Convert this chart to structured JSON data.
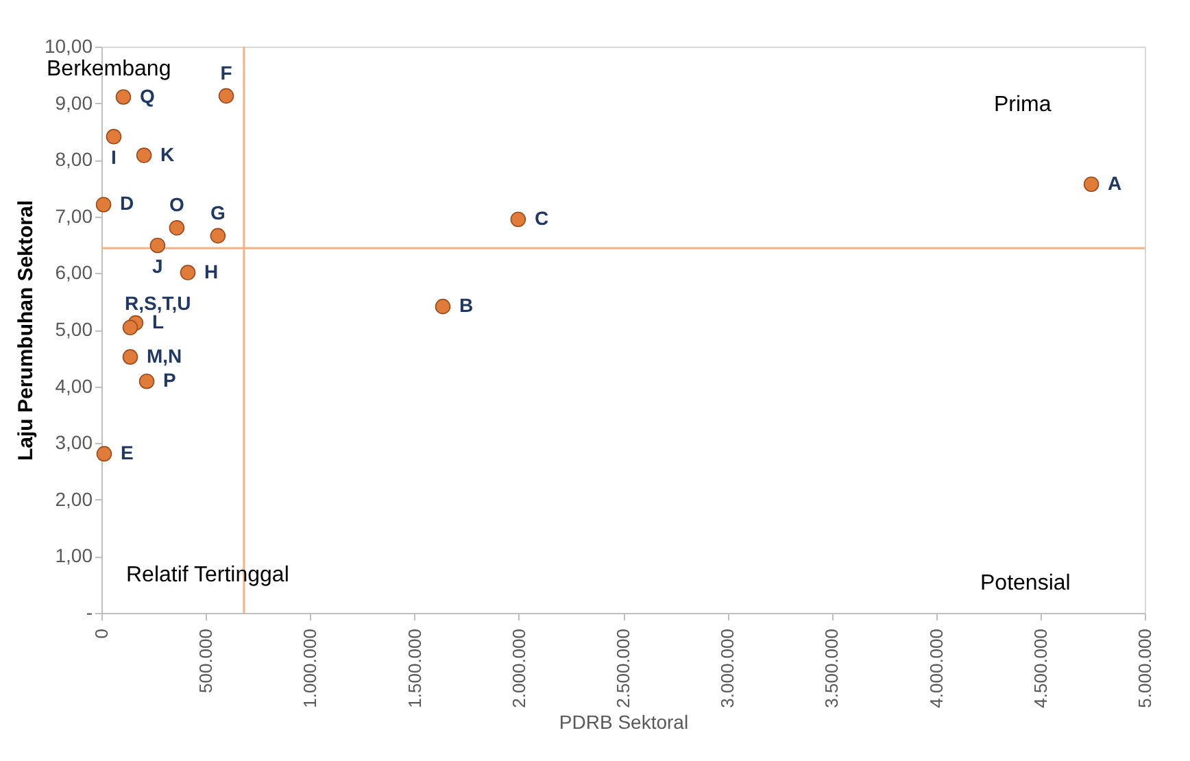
{
  "chart_data": {
    "type": "scatter",
    "xlabel": "PDRB Sektoral",
    "ylabel": "Laju Perumbuhan Sektoral",
    "xlim": [
      0,
      5000000
    ],
    "ylim": [
      0,
      10
    ],
    "xticks": [
      0,
      {
        "value": 500000,
        "label": "500.000"
      },
      {
        "value": 1000000,
        "label": "1.000.000"
      },
      {
        "value": 1500000,
        "label": "1.500.000"
      },
      {
        "value": 2000000,
        "label": "2.000.000"
      },
      {
        "value": 2500000,
        "label": "2.500.000"
      },
      {
        "value": 3000000,
        "label": "3.000.000"
      },
      {
        "value": 3500000,
        "label": "3.500.000"
      },
      {
        "value": 4000000,
        "label": "4.000.000"
      },
      {
        "value": 4500000,
        "label": "4.500.000"
      },
      {
        "value": 5000000,
        "label": "5.000.000"
      }
    ],
    "yticks": [
      {
        "value": 0,
        "label": "-"
      },
      {
        "value": 1,
        "label": "1,00"
      },
      {
        "value": 2,
        "label": "2,00"
      },
      {
        "value": 3,
        "label": "3,00"
      },
      {
        "value": 4,
        "label": "4,00"
      },
      {
        "value": 5,
        "label": "5,00"
      },
      {
        "value": 6,
        "label": "6,00"
      },
      {
        "value": 7,
        "label": "7,00"
      },
      {
        "value": 8,
        "label": "8,00"
      },
      {
        "value": 9,
        "label": "9,00"
      },
      {
        "value": 10,
        "label": "10,00"
      }
    ],
    "grid": false,
    "legend": false,
    "marker": "circle",
    "series": [
      {
        "name": "A",
        "color": "#e07b39",
        "x": [
          4744000
        ],
        "values": [
          7.57
        ]
      },
      {
        "name": "B",
        "color": "#e07b39",
        "x": [
          1636000
        ],
        "values": [
          5.41
        ]
      },
      {
        "name": "C",
        "color": "#e07b39",
        "x": [
          1997000
        ],
        "values": [
          6.95
        ]
      },
      {
        "name": "D",
        "color": "#e07b39",
        "x": [
          10000
        ],
        "values": [
          7.21
        ]
      },
      {
        "name": "E",
        "color": "#e07b39",
        "x": [
          13000
        ],
        "values": [
          2.81
        ]
      },
      {
        "name": "F",
        "color": "#e07b39",
        "x": [
          598000
        ],
        "values": [
          9.13
        ]
      },
      {
        "name": "G",
        "color": "#e07b39",
        "x": [
          558000
        ],
        "values": [
          6.66
        ]
      },
      {
        "name": "H",
        "color": "#e07b39",
        "x": [
          414000
        ],
        "values": [
          6.01
        ]
      },
      {
        "name": "I",
        "color": "#e07b39",
        "x": [
          59000
        ],
        "values": [
          8.41
        ]
      },
      {
        "name": "J",
        "color": "#e07b39",
        "x": [
          269000
        ],
        "values": [
          6.49
        ]
      },
      {
        "name": "K",
        "color": "#e07b39",
        "x": [
          204000
        ],
        "values": [
          8.08
        ]
      },
      {
        "name": "L",
        "color": "#e07b39",
        "x": [
          164000
        ],
        "values": [
          5.12
        ]
      },
      {
        "name": "R,S,T,U",
        "color": "#e07b39",
        "x": [
          138000
        ],
        "values": [
          5.04
        ]
      },
      {
        "name": "M,N",
        "color": "#e07b39",
        "x": [
          138000
        ],
        "values": [
          4.52
        ]
      },
      {
        "name": "O",
        "color": "#e07b39",
        "x": [
          361000
        ],
        "values": [
          6.8
        ]
      },
      {
        "name": "P",
        "color": "#e07b39",
        "x": [
          217000
        ],
        "values": [
          4.09
        ]
      },
      {
        "name": "Q",
        "color": "#e07b39",
        "x": [
          105000
        ],
        "values": [
          9.11
        ]
      }
    ],
    "ref_lines": [
      {
        "axis": "x",
        "value": 683000,
        "color": "#f4b183"
      },
      {
        "axis": "y",
        "value": 6.44,
        "color": "#f4b183"
      }
    ],
    "annotations": [
      "Berkembang",
      "Prima",
      "Relatif Tertinggal",
      "Potensial"
    ]
  }
}
